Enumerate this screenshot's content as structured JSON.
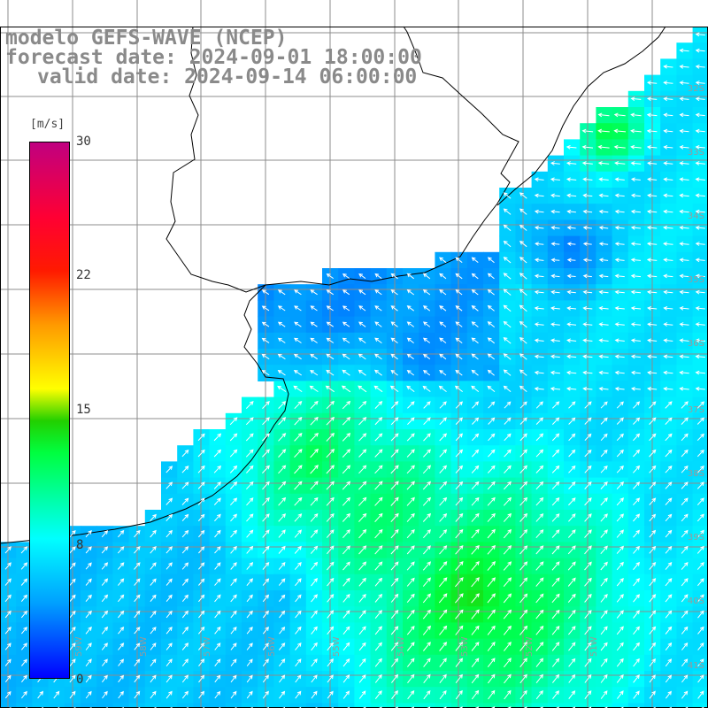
{
  "title": {
    "line1": "modelo GEFS-WAVE (NCEP)",
    "line2": "forecast date: 2024-09-01 18:00:00",
    "line3": "valid date: 2024-09-14 06:00:00"
  },
  "colorbar": {
    "unit": "[m/s]",
    "ticks": [
      "30",
      "22",
      "15",
      "8",
      "0"
    ]
  },
  "axes": {
    "lat_labels": [
      "32S",
      "33S",
      "34S",
      "35S",
      "36S",
      "37S",
      "38S",
      "39S",
      "40S",
      "41S"
    ],
    "lon_labels": [
      "59W",
      "58W",
      "57W",
      "56W",
      "55W",
      "54W",
      "53W",
      "52W",
      "51W"
    ]
  },
  "colors": {
    "land": "#ffffff",
    "grid": "#8c8c8c",
    "coastline": "#000000",
    "arrow": "#ffffff",
    "title": "#8a8a8a"
  }
}
